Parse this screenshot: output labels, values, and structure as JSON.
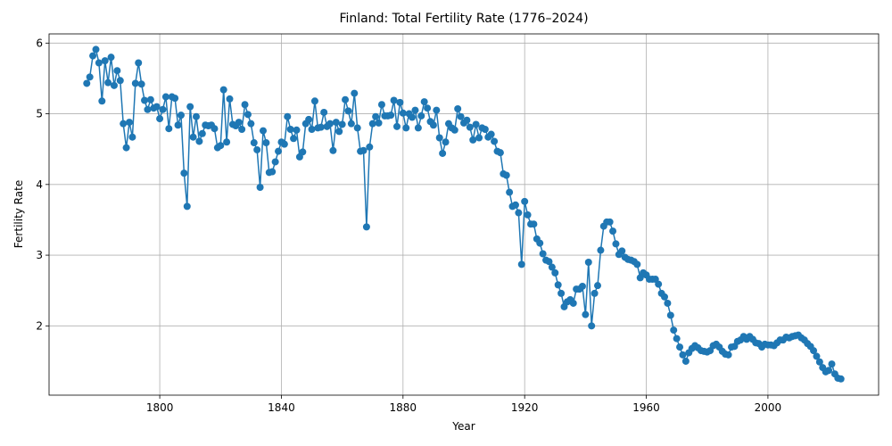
{
  "chart_data": {
    "type": "line",
    "title": "Finland: Total Fertility Rate (1776–2024)",
    "xlabel": "Year",
    "ylabel": "Fertility Rate",
    "grid": true,
    "xlim": [
      1763.6,
      2036.4
    ],
    "ylim": [
      1.02,
      6.13
    ],
    "xticks": [
      1800,
      1840,
      1880,
      1920,
      1960,
      2000
    ],
    "yticks": [
      2,
      3,
      4,
      5,
      6
    ],
    "x": [
      1776,
      1777,
      1778,
      1779,
      1780,
      1781,
      1782,
      1783,
      1784,
      1785,
      1786,
      1787,
      1788,
      1789,
      1790,
      1791,
      1792,
      1793,
      1794,
      1795,
      1796,
      1797,
      1798,
      1799,
      1800,
      1801,
      1802,
      1803,
      1804,
      1805,
      1806,
      1807,
      1808,
      1809,
      1810,
      1811,
      1812,
      1813,
      1814,
      1815,
      1816,
      1817,
      1818,
      1819,
      1820,
      1821,
      1822,
      1823,
      1824,
      1825,
      1826,
      1827,
      1828,
      1829,
      1830,
      1831,
      1832,
      1833,
      1834,
      1835,
      1836,
      1837,
      1838,
      1839,
      1840,
      1841,
      1842,
      1843,
      1844,
      1845,
      1846,
      1847,
      1848,
      1849,
      1850,
      1851,
      1852,
      1853,
      1854,
      1855,
      1856,
      1857,
      1858,
      1859,
      1860,
      1861,
      1862,
      1863,
      1864,
      1865,
      1866,
      1867,
      1868,
      1869,
      1870,
      1871,
      1872,
      1873,
      1874,
      1875,
      1876,
      1877,
      1878,
      1879,
      1880,
      1881,
      1882,
      1883,
      1884,
      1885,
      1886,
      1887,
      1888,
      1889,
      1890,
      1891,
      1892,
      1893,
      1894,
      1895,
      1896,
      1897,
      1898,
      1899,
      1900,
      1901,
      1902,
      1903,
      1904,
      1905,
      1906,
      1907,
      1908,
      1909,
      1910,
      1911,
      1912,
      1913,
      1914,
      1915,
      1916,
      1917,
      1918,
      1919,
      1920,
      1921,
      1922,
      1923,
      1924,
      1925,
      1926,
      1927,
      1928,
      1929,
      1930,
      1931,
      1932,
      1933,
      1934,
      1935,
      1936,
      1937,
      1938,
      1939,
      1940,
      1941,
      1942,
      1943,
      1944,
      1945,
      1946,
      1947,
      1948,
      1949,
      1950,
      1951,
      1952,
      1953,
      1954,
      1955,
      1956,
      1957,
      1958,
      1959,
      1960,
      1961,
      1962,
      1963,
      1964,
      1965,
      1966,
      1967,
      1968,
      1969,
      1970,
      1971,
      1972,
      1973,
      1974,
      1975,
      1976,
      1977,
      1978,
      1979,
      1980,
      1981,
      1982,
      1983,
      1984,
      1985,
      1986,
      1987,
      1988,
      1989,
      1990,
      1991,
      1992,
      1993,
      1994,
      1995,
      1996,
      1997,
      1998,
      1999,
      2000,
      2001,
      2002,
      2003,
      2004,
      2005,
      2006,
      2007,
      2008,
      2009,
      2010,
      2011,
      2012,
      2013,
      2014,
      2015,
      2016,
      2017,
      2018,
      2019,
      2020,
      2021,
      2022,
      2023,
      2024
    ],
    "series": [
      {
        "color": "#1f77b4",
        "values": [
          5.43,
          5.52,
          5.82,
          5.91,
          5.72,
          5.18,
          5.75,
          5.44,
          5.8,
          5.4,
          5.61,
          5.47,
          4.86,
          4.52,
          4.88,
          4.67,
          5.43,
          5.72,
          5.42,
          5.19,
          5.06,
          5.2,
          5.08,
          5.1,
          4.93,
          5.06,
          5.24,
          4.79,
          5.24,
          5.22,
          4.84,
          4.98,
          4.16,
          3.69,
          5.1,
          4.67,
          4.96,
          4.61,
          4.72,
          4.84,
          4.83,
          4.84,
          4.79,
          4.52,
          4.55,
          5.34,
          4.6,
          5.21,
          4.85,
          4.83,
          4.88,
          4.78,
          5.13,
          4.99,
          4.86,
          4.59,
          4.49,
          3.96,
          4.76,
          4.59,
          4.17,
          4.18,
          4.32,
          4.47,
          4.6,
          4.57,
          4.96,
          4.78,
          4.65,
          4.77,
          4.39,
          4.46,
          4.86,
          4.92,
          4.78,
          5.18,
          4.8,
          4.81,
          5.02,
          4.82,
          4.86,
          4.48,
          4.88,
          4.75,
          4.85,
          5.2,
          5.04,
          4.86,
          5.29,
          4.8,
          4.47,
          4.48,
          3.4,
          4.53,
          4.86,
          4.96,
          4.87,
          5.13,
          4.97,
          4.97,
          4.98,
          5.19,
          4.82,
          5.16,
          5.01,
          4.8,
          5.0,
          4.95,
          5.05,
          4.8,
          4.97,
          5.17,
          5.08,
          4.89,
          4.84,
          5.05,
          4.66,
          4.44,
          4.6,
          4.86,
          4.8,
          4.77,
          5.07,
          4.96,
          4.87,
          4.91,
          4.81,
          4.63,
          4.85,
          4.66,
          4.8,
          4.78,
          4.67,
          4.71,
          4.61,
          4.47,
          4.45,
          4.15,
          4.13,
          3.89,
          3.69,
          3.71,
          3.6,
          2.87,
          3.76,
          3.57,
          3.44,
          3.44,
          3.23,
          3.17,
          3.02,
          2.93,
          2.91,
          2.83,
          2.75,
          2.58,
          2.46,
          2.27,
          2.34,
          2.37,
          2.32,
          2.52,
          2.52,
          2.56,
          2.16,
          2.9,
          2.0,
          2.46,
          2.57,
          3.07,
          3.41,
          3.47,
          3.47,
          3.34,
          3.16,
          3.01,
          3.06,
          2.97,
          2.94,
          2.93,
          2.91,
          2.87,
          2.68,
          2.75,
          2.72,
          2.66,
          2.66,
          2.66,
          2.59,
          2.46,
          2.41,
          2.32,
          2.15,
          1.94,
          1.82,
          1.7,
          1.59,
          1.5,
          1.62,
          1.68,
          1.72,
          1.69,
          1.65,
          1.64,
          1.63,
          1.65,
          1.72,
          1.74,
          1.7,
          1.64,
          1.6,
          1.59,
          1.7,
          1.71,
          1.78,
          1.8,
          1.85,
          1.81,
          1.85,
          1.81,
          1.76,
          1.75,
          1.7,
          1.74,
          1.73,
          1.73,
          1.72,
          1.76,
          1.8,
          1.8,
          1.84,
          1.83,
          1.85,
          1.86,
          1.87,
          1.83,
          1.8,
          1.75,
          1.71,
          1.65,
          1.57,
          1.49,
          1.41,
          1.35,
          1.37,
          1.46,
          1.32,
          1.26,
          1.25
        ]
      }
    ]
  }
}
